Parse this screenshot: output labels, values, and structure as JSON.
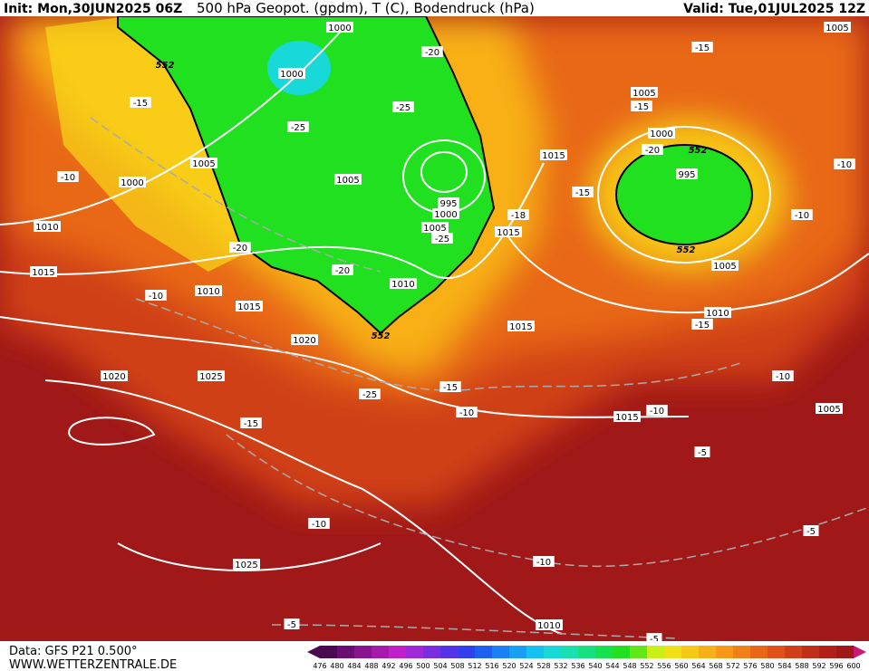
{
  "header": {
    "init": "Init: Mon,30JUN2025 06Z",
    "title": "500 hPa Geopot. (gpdm), T (C), Bodendruck (hPa)",
    "valid": "Valid: Tue,01JUL2025 12Z"
  },
  "footer": {
    "data": "Data: GFS P21 0.500°",
    "site": "WWW.WETTERZENTRALE.DE"
  },
  "colorbar": {
    "labels": [
      476,
      480,
      484,
      488,
      492,
      496,
      500,
      504,
      508,
      512,
      516,
      520,
      524,
      528,
      532,
      536,
      540,
      544,
      548,
      552,
      556,
      560,
      564,
      568,
      572,
      576,
      580,
      584,
      588,
      592,
      596,
      600
    ],
    "colors": [
      "#4b0a4f",
      "#6a0f72",
      "#8a148f",
      "#a51aad",
      "#c020c8",
      "#a028d8",
      "#7a2ee0",
      "#5533e6",
      "#3040ec",
      "#2060f0",
      "#1a80f4",
      "#18a0f6",
      "#18c0f0",
      "#18d8d8",
      "#18e0b0",
      "#18e080",
      "#18e050",
      "#20e020",
      "#60e818",
      "#c8f018",
      "#f0e018",
      "#f8c818",
      "#f8b018",
      "#f89818",
      "#f08018",
      "#e86818",
      "#e05018",
      "#d04018",
      "#c03018",
      "#b02018",
      "#a01818",
      "#c81878"
    ]
  },
  "labels": [
    "1000",
    "1000",
    "552",
    "-15",
    "1005",
    "-10",
    "1000",
    "1010",
    "1015",
    "-10",
    "1010",
    "1015",
    "-20",
    "-20",
    "1020",
    "1025",
    "1020",
    "-15",
    "-25",
    "552",
    "1010",
    "1005",
    "-25",
    "995",
    "1000",
    "1005",
    "-25",
    "-25",
    "-20",
    "1015",
    "-18",
    "-15",
    "1015",
    "1005",
    "-15",
    "1000",
    "-20",
    "552",
    "995",
    "552",
    "1005",
    "-10",
    "-10",
    "-15",
    "1005",
    "1010",
    "-15",
    "-10",
    "1015",
    "-15",
    "-10",
    "1015",
    "-10",
    "-5",
    "1005",
    "-10",
    "1025",
    "-10",
    "-5",
    "-5",
    "1010",
    "-5"
  ]
}
